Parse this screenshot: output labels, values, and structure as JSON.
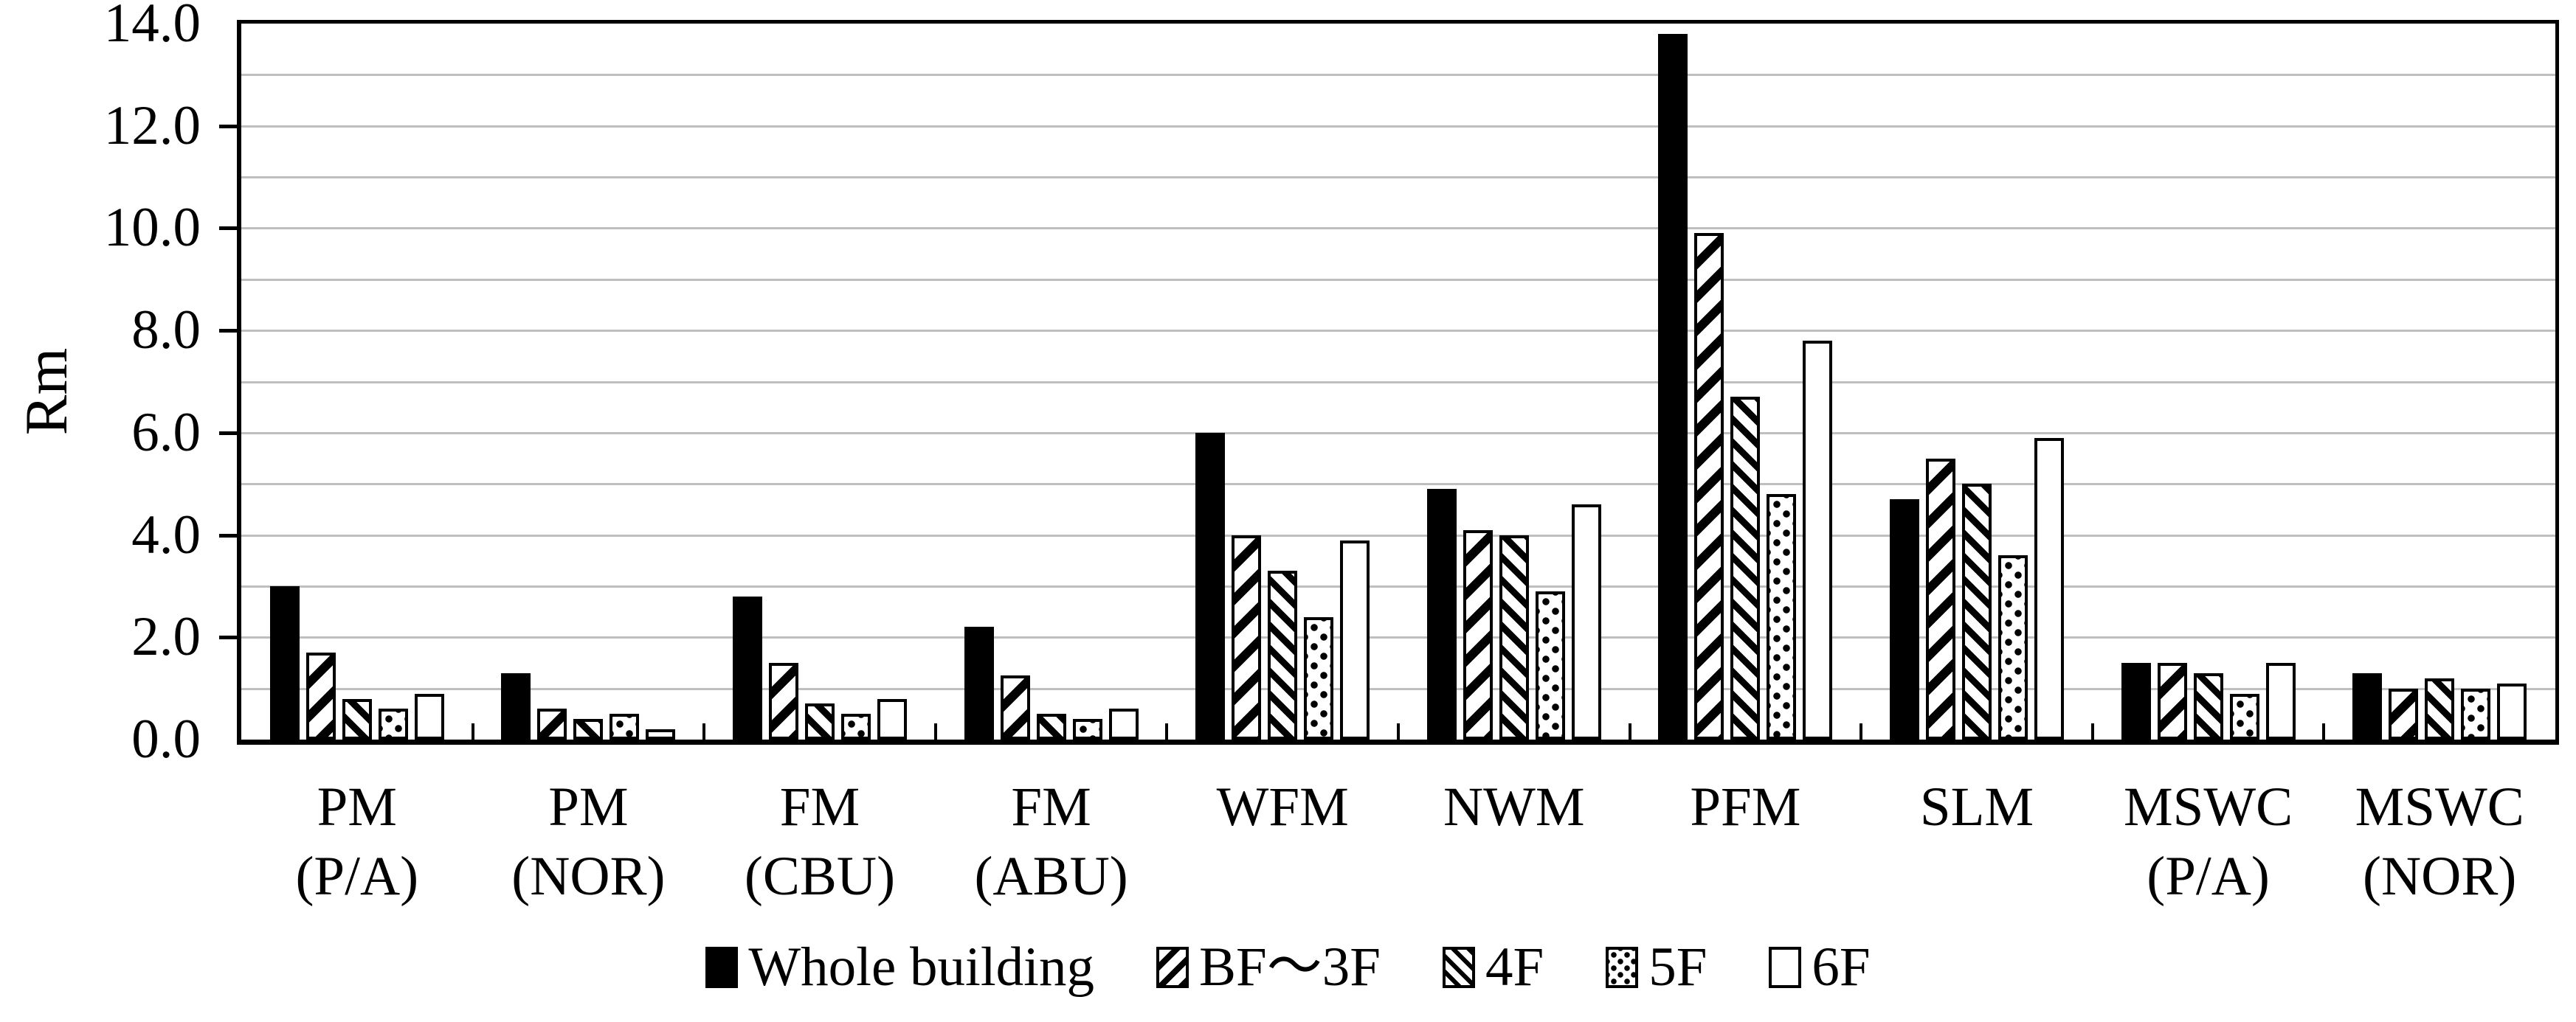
{
  "chart_data": {
    "type": "bar",
    "title": "",
    "ylabel": "Rm",
    "xlabel": "",
    "ylim": [
      0,
      14
    ],
    "ytick_step": 2,
    "gridline_step": 1,
    "grid": true,
    "legend_position": "bottom",
    "y_tick_labels": [
      "0.0",
      "2.0",
      "4.0",
      "6.0",
      "8.0",
      "10.0",
      "12.0",
      "14.0"
    ],
    "categories": [
      {
        "line1": "PM",
        "line2": "(P/A)"
      },
      {
        "line1": "PM",
        "line2": "(NOR)"
      },
      {
        "line1": "FM",
        "line2": "(CBU)"
      },
      {
        "line1": "FM",
        "line2": "(ABU)"
      },
      {
        "line1": "WFM",
        "line2": ""
      },
      {
        "line1": "NWM",
        "line2": ""
      },
      {
        "line1": "PFM",
        "line2": ""
      },
      {
        "line1": "SLM",
        "line2": ""
      },
      {
        "line1": "MSWC",
        "line2": "(P/A)"
      },
      {
        "line1": "MSWC",
        "line2": "(NOR)"
      }
    ],
    "series": [
      {
        "name": "Whole building",
        "pattern": "solid",
        "values": [
          3.0,
          1.3,
          2.8,
          2.2,
          6.0,
          4.9,
          13.8,
          4.7,
          1.5,
          1.3
        ]
      },
      {
        "name": "BF～3F",
        "pattern": "diag-up",
        "values": [
          1.7,
          0.6,
          1.5,
          1.25,
          4.0,
          4.1,
          9.9,
          5.5,
          1.5,
          1.0
        ]
      },
      {
        "name": "4F",
        "pattern": "diag-down",
        "values": [
          0.8,
          0.4,
          0.7,
          0.5,
          3.3,
          4.0,
          6.7,
          5.0,
          1.3,
          1.2
        ]
      },
      {
        "name": "5F",
        "pattern": "dots",
        "values": [
          0.6,
          0.5,
          0.5,
          0.4,
          2.4,
          2.9,
          4.8,
          3.6,
          0.9,
          1.0
        ]
      },
      {
        "name": "6F",
        "pattern": "empty",
        "values": [
          0.9,
          0.2,
          0.8,
          0.6,
          3.9,
          4.6,
          7.8,
          5.9,
          1.5,
          1.1
        ]
      }
    ],
    "colors": {
      "bar_fill": "#000000",
      "bar_bg": "#ffffff",
      "gridline": "#bfbfbf",
      "axis": "#000000"
    }
  }
}
